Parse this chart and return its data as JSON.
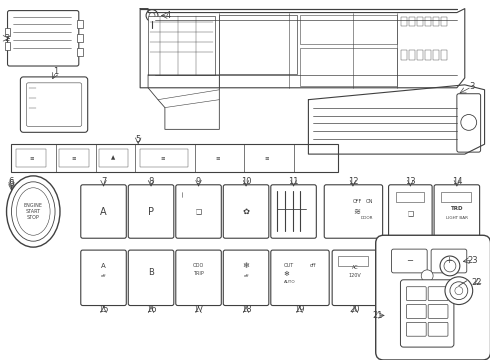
{
  "bg_color": "#ffffff",
  "line_color": "#404040",
  "fig_width": 4.9,
  "fig_height": 3.6,
  "dpi": 100,
  "row1_labels": [
    "6",
    "7",
    "8",
    "9",
    "10",
    "11",
    "12",
    "13",
    "14"
  ],
  "row2_labels": [
    "15",
    "16",
    "17",
    "18",
    "19",
    "20"
  ],
  "all_labels": [
    "1",
    "2",
    "3",
    "4",
    "5",
    "6",
    "7",
    "8",
    "9",
    "10",
    "11",
    "12",
    "13",
    "14",
    "15",
    "16",
    "17",
    "18",
    "19",
    "20",
    "21",
    "22",
    "23"
  ]
}
